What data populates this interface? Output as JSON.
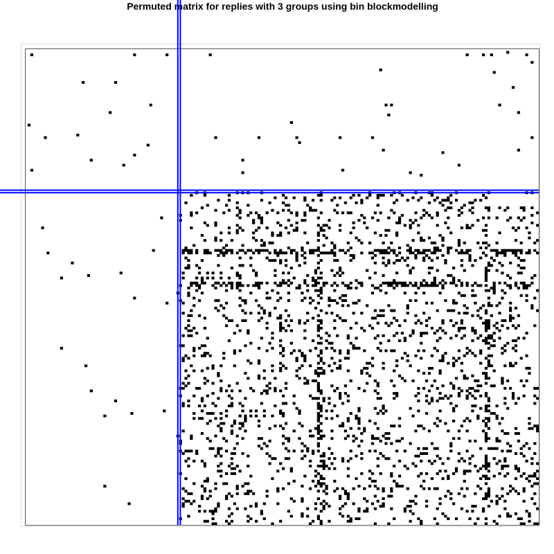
{
  "chart_data": {
    "type": "heatmap",
    "title": "Permuted matrix for replies with 3 groups using bin blockmodelling",
    "xlabel": "",
    "ylabel": "",
    "n_rows": 190,
    "n_cols": 190,
    "block_boundaries": [
      57,
      57
    ],
    "colors": {
      "filled": "#000000",
      "background": "#ffffff",
      "partition": "#0000ff",
      "frame": "#555555"
    },
    "block_densities": {
      "top_left": 0.0015,
      "top_right": 0.0015,
      "bottom_left": 0.0015,
      "bottom_right": 0.12
    },
    "dense_rows": [
      80,
      81,
      93,
      94
    ],
    "dense_cols": [
      108,
      109,
      170,
      171
    ],
    "sample_filled_cells": [
      [
        2,
        2
      ],
      [
        2,
        40
      ],
      [
        2,
        52
      ],
      [
        2,
        68
      ],
      [
        2,
        163
      ],
      [
        2,
        169
      ],
      [
        2,
        172
      ],
      [
        2,
        185
      ],
      [
        8,
        131
      ],
      [
        13,
        21
      ],
      [
        13,
        33
      ],
      [
        22,
        46
      ],
      [
        22,
        133
      ],
      [
        22,
        135
      ],
      [
        22,
        175
      ],
      [
        35,
        70
      ],
      [
        35,
        86
      ],
      [
        35,
        128
      ],
      [
        37,
        101
      ],
      [
        40,
        132
      ],
      [
        40,
        182
      ],
      [
        44,
        80
      ],
      [
        46,
        160
      ],
      [
        48,
        117
      ],
      [
        48,
        2
      ]
    ],
    "grid": false,
    "legend": "none"
  }
}
